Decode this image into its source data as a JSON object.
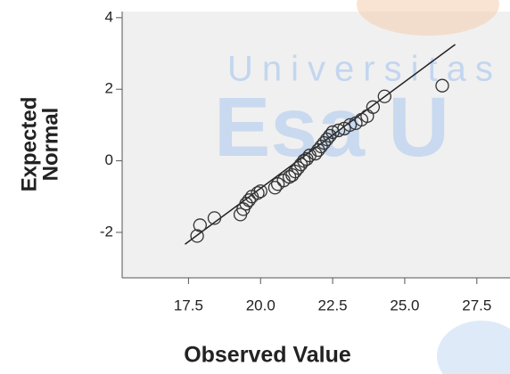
{
  "chart_data": {
    "type": "scatter",
    "xlabel": "Observed Value",
    "ylabel": [
      "Expected",
      "Normal"
    ],
    "watermark": [
      "Universitas",
      "Esa U"
    ],
    "x": [
      17.8,
      17.9,
      18.4,
      19.3,
      19.4,
      19.5,
      19.6,
      19.7,
      19.9,
      20.0,
      20.5,
      20.6,
      20.8,
      21.0,
      21.1,
      21.2,
      21.3,
      21.4,
      21.5,
      21.6,
      21.7,
      21.9,
      22.0,
      22.1,
      22.2,
      22.3,
      22.4,
      22.5,
      22.7,
      22.9,
      23.1,
      23.3,
      23.5,
      23.7,
      23.9,
      24.3,
      26.3
    ],
    "values": [
      -2.1,
      -1.8,
      -1.6,
      -1.5,
      -1.35,
      -1.2,
      -1.1,
      -1.0,
      -0.9,
      -0.85,
      -0.75,
      -0.65,
      -0.55,
      -0.45,
      -0.4,
      -0.3,
      -0.2,
      -0.1,
      0.0,
      0.05,
      0.15,
      0.2,
      0.3,
      0.4,
      0.5,
      0.6,
      0.7,
      0.8,
      0.85,
      0.9,
      1.0,
      1.05,
      1.15,
      1.25,
      1.5,
      1.8,
      2.1
    ],
    "marker_color": "#333333",
    "reference_line": {
      "x": [
        17.38,
        26.75
      ],
      "y": [
        -2.33,
        3.25
      ],
      "color": "#222222"
    },
    "xlim": [
      15.2,
      28.65
    ],
    "ylim": [
      -3.27,
      4.17
    ],
    "xticks": [
      17.5,
      {
        "value": 20,
        "label": "20.0"
      },
      22.5,
      {
        "value": 25,
        "label": "25.0"
      },
      27.5
    ],
    "yticks": [
      -2,
      0,
      2,
      4
    ],
    "plot_background": "#f0f0f0"
  }
}
